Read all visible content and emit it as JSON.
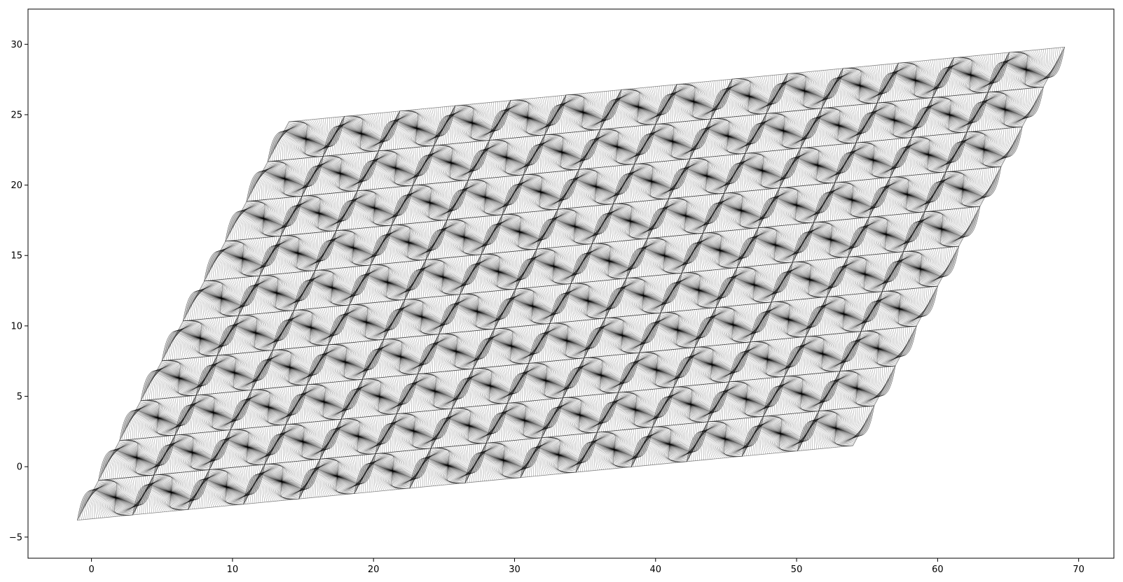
{
  "chart_data": {
    "type": "line",
    "title": "",
    "xlabel": "",
    "ylabel": "",
    "xlim": [
      -4.5,
      72.5
    ],
    "ylim": [
      -6.5,
      32.5
    ],
    "xticks": [
      0,
      10,
      20,
      30,
      40,
      50,
      60,
      70
    ],
    "yticks": [
      -5,
      0,
      5,
      10,
      15,
      20,
      25,
      30
    ],
    "xtick_labels": [
      "0",
      "10",
      "20",
      "30",
      "40",
      "50",
      "60",
      "70"
    ],
    "ytick_labels": [
      "−5",
      "0",
      "5",
      "10",
      "15",
      "20",
      "25",
      "30"
    ],
    "grid": false,
    "legend": "none",
    "pattern": {
      "description": "parallelogram region tiled with spiral stroke patterns",
      "region_corners": [
        [
          -1,
          -3.8
        ],
        [
          14,
          24.5
        ],
        [
          69,
          29.8
        ],
        [
          54,
          1.5
        ]
      ],
      "columns": 14,
      "rows": 10
    },
    "colors": {
      "stroke": "#000000",
      "background": "#ffffff"
    }
  }
}
